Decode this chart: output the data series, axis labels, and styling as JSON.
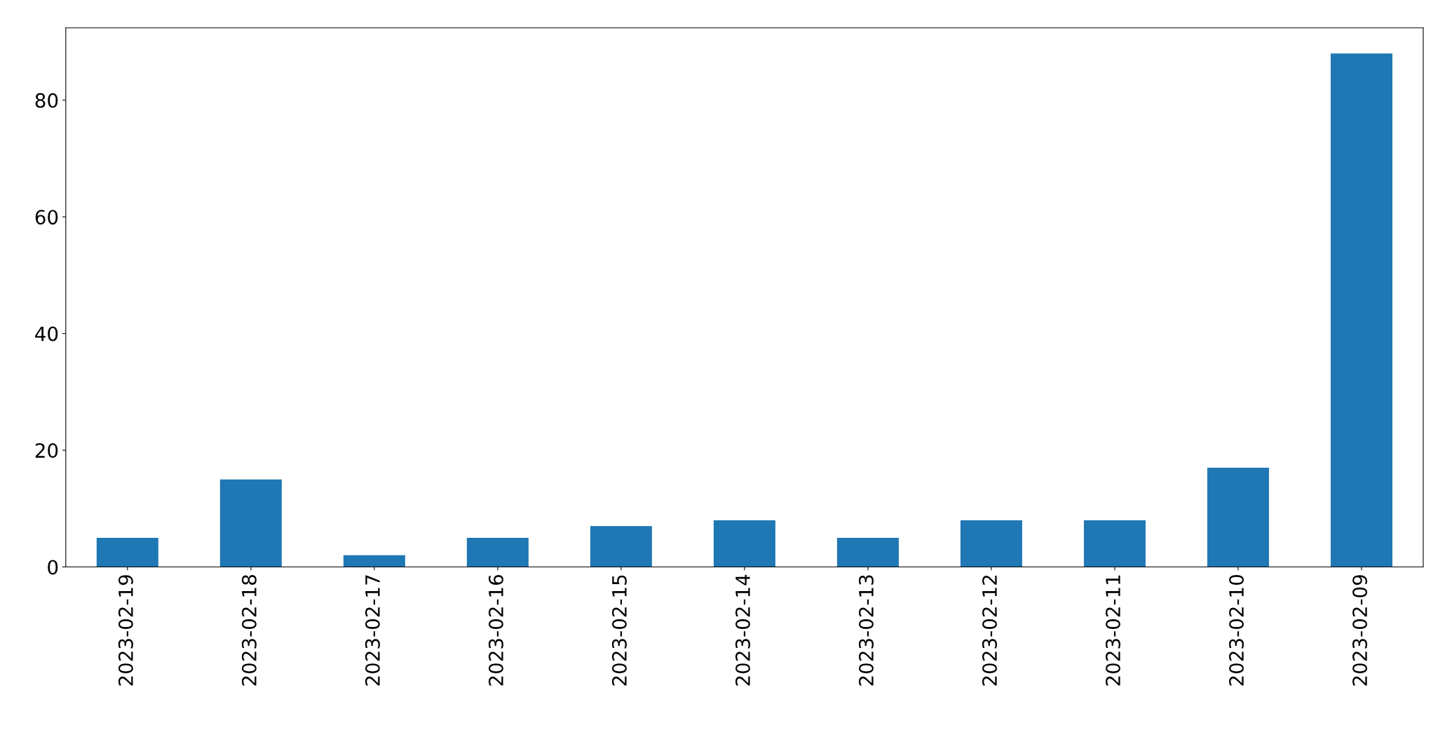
{
  "chart_data": {
    "type": "bar",
    "categories": [
      "2023-02-19",
      "2023-02-18",
      "2023-02-17",
      "2023-02-16",
      "2023-02-15",
      "2023-02-14",
      "2023-02-13",
      "2023-02-12",
      "2023-02-11",
      "2023-02-10",
      "2023-02-09"
    ],
    "values": [
      5,
      15,
      2,
      5,
      7,
      8,
      5,
      8,
      8,
      17,
      88
    ],
    "color": "#1f77b4",
    "ylim": [
      0,
      92.4
    ],
    "yticks": [
      0,
      20,
      40,
      60,
      80
    ],
    "grid": false,
    "legend": false
  }
}
